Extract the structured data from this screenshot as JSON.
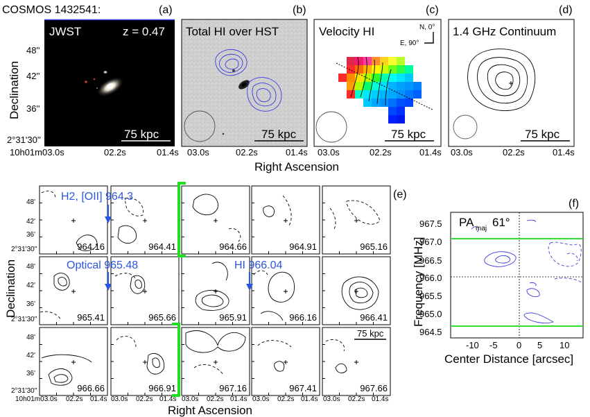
{
  "figure": {
    "object_name": "COSMOS 1432541:",
    "top_row": {
      "panels": [
        {
          "letter": "(a)",
          "title": "JWST",
          "redshift": "z = 0.47",
          "scalebar": "75 kpc"
        },
        {
          "letter": "(b)",
          "title": "Total HI over HST",
          "scalebar": "75 kpc"
        },
        {
          "letter": "(c)",
          "title": "Velocity HI",
          "compass_n": "N, 0°",
          "compass_e": "E, 90°",
          "scalebar": "75 kpc"
        },
        {
          "letter": "(d)",
          "title": "1.4 GHz Continuum",
          "scalebar": "75 kpc"
        }
      ],
      "y_label": "Declination",
      "y_ticks": [
        "48''",
        "42''",
        "36''",
        "2°31'30''"
      ],
      "x_ticks_first": [
        "10h01m03.0s",
        "02.2s",
        "01.4s"
      ],
      "x_ticks": [
        "03.0s",
        "02.2s",
        "01.4s"
      ],
      "x_label": "Right Ascension"
    },
    "channel_maps": {
      "letter": "(e)",
      "y_label": "Declination",
      "x_label": "Right Ascension",
      "y_ticks": [
        "48'",
        "42'",
        "36'",
        "2°31'30''"
      ],
      "x_ticks_first": [
        "10h01m03.0s",
        "02.2s",
        "01.4s"
      ],
      "x_ticks": [
        "03.0s",
        "02.2s",
        "01.4s"
      ],
      "frequencies": [
        "964.16",
        "964.41",
        "964.66",
        "964.91",
        "965.16",
        "965.41",
        "965.66",
        "965.91",
        "966.16",
        "966.41",
        "966.66",
        "966.91",
        "967.16",
        "967.41",
        "967.66"
      ],
      "annotations": {
        "h2": "H2, [OII] 964.3",
        "optical": "Optical 965.48",
        "hi": "HI 966.04"
      },
      "scalebar": "75 kpc"
    },
    "pv_diagram": {
      "letter": "(f)",
      "pa_label": "PA",
      "pa_sub": "maj",
      "pa_value": "61°",
      "y_label": "Frequency [MHz]",
      "x_label": "Center Distance [arcsec]",
      "y_ticks": [
        "967.5",
        "967.0",
        "966.5",
        "966.0",
        "965.5",
        "965.0",
        "964.5"
      ],
      "x_ticks": [
        "-10",
        "-5",
        "0",
        "5",
        "10"
      ]
    },
    "colors": {
      "hi_contour": "#3a3adf",
      "annotation": "#2a56e0",
      "bracket": "#22dd22",
      "pv_line": "#33dd33"
    }
  }
}
